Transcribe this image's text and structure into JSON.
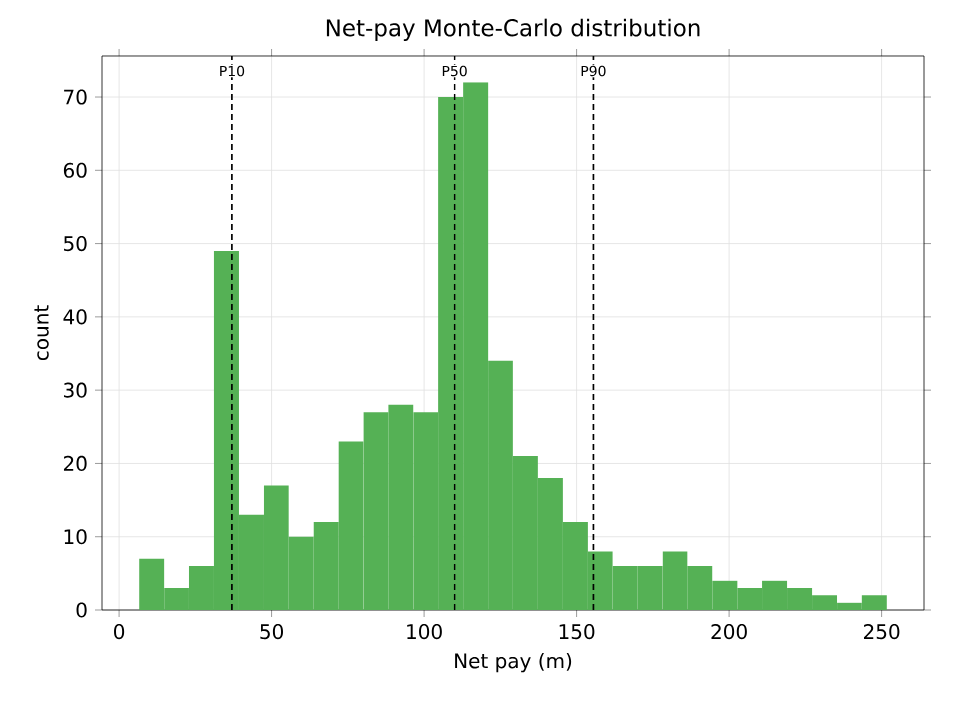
{
  "chart_data": {
    "type": "histogram",
    "title": "Net-pay Monte-Carlo distribution",
    "xlabel": "Net pay (m)",
    "ylabel": "count",
    "bins": [
      6.6,
      14.8,
      22.9,
      31.1,
      39.3,
      47.5,
      55.6,
      63.8,
      72.0,
      80.1,
      88.3,
      96.5,
      104.6,
      112.8,
      121.0,
      129.1,
      137.3,
      145.5,
      153.7,
      161.8,
      170.0,
      178.2,
      186.3,
      194.5,
      202.7,
      210.8,
      219.0,
      227.2,
      235.4,
      243.5,
      251.7
    ],
    "values": [
      7,
      3,
      6,
      49,
      13,
      17,
      10,
      12,
      23,
      27,
      28,
      27,
      70,
      72,
      34,
      21,
      18,
      12,
      8,
      6,
      6,
      8,
      6,
      4,
      3,
      4,
      3,
      2,
      1,
      2
    ],
    "color": "#55b155",
    "xlim": [
      -5.6,
      263.9
    ],
    "ylim": [
      0,
      75.6
    ],
    "xticks": [
      0,
      50,
      100,
      150,
      200,
      250
    ],
    "yticks": [
      0,
      10,
      20,
      30,
      40,
      50,
      60,
      70
    ],
    "grid": true,
    "ref_lines": [
      {
        "axis": "x",
        "value": 37,
        "label": "P10",
        "color": "#000000",
        "line_style": "dashed"
      },
      {
        "axis": "x",
        "value": 110,
        "label": "P50",
        "color": "#000000",
        "line_style": "dashed"
      },
      {
        "axis": "x",
        "value": 155.5,
        "label": "P90",
        "color": "#000000",
        "line_style": "dashed"
      }
    ]
  }
}
